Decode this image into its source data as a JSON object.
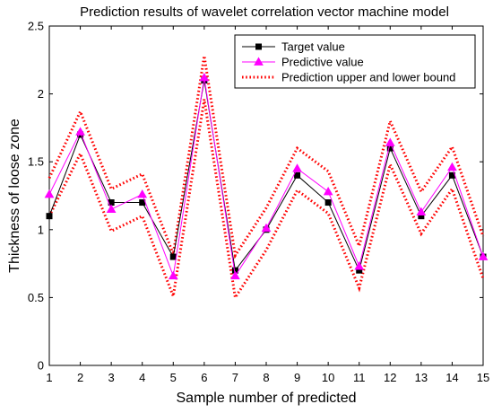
{
  "chart_data": {
    "type": "line",
    "title": "Prediction results of wavelet correlation vector machine model",
    "xlabel": "Sample number of predicted",
    "ylabel": "Thickness of loose zone",
    "xlim": [
      1,
      15
    ],
    "ylim": [
      0,
      2.5
    ],
    "x": [
      1,
      2,
      3,
      4,
      5,
      6,
      7,
      8,
      9,
      10,
      11,
      12,
      13,
      14,
      15
    ],
    "x_ticks": [
      "1",
      "2",
      "3",
      "4",
      "5",
      "6",
      "7",
      "8",
      "9",
      "10",
      "11",
      "12",
      "13",
      "14",
      "15"
    ],
    "y_ticks": [
      "0",
      "0.5",
      "1",
      "1.5",
      "2",
      "2.5"
    ],
    "legend_position": "top-right",
    "series": [
      {
        "name": "Target value",
        "color": "#000000",
        "marker": "square",
        "line_style": "solid",
        "values": [
          1.1,
          1.7,
          1.2,
          1.2,
          0.8,
          2.1,
          0.7,
          1.0,
          1.4,
          1.2,
          0.7,
          1.6,
          1.1,
          1.4,
          0.8
        ]
      },
      {
        "name": "Predictive value",
        "color": "#ff00ff",
        "marker": "triangle",
        "line_style": "solid",
        "values": [
          1.26,
          1.72,
          1.15,
          1.26,
          0.66,
          2.12,
          0.66,
          1.01,
          1.45,
          1.28,
          0.73,
          1.64,
          1.13,
          1.46,
          0.8
        ]
      },
      {
        "name": "Prediction upper and lower bound",
        "color": "#ff0000",
        "marker": "none",
        "line_style": "dotted",
        "upper": [
          1.38,
          1.87,
          1.3,
          1.41,
          0.82,
          2.28,
          0.81,
          1.16,
          1.6,
          1.43,
          0.88,
          1.8,
          1.28,
          1.61,
          0.95
        ],
        "lower": [
          1.1,
          1.56,
          0.99,
          1.1,
          0.51,
          1.96,
          0.5,
          0.85,
          1.29,
          1.12,
          0.57,
          1.48,
          0.97,
          1.3,
          0.64
        ]
      }
    ]
  }
}
